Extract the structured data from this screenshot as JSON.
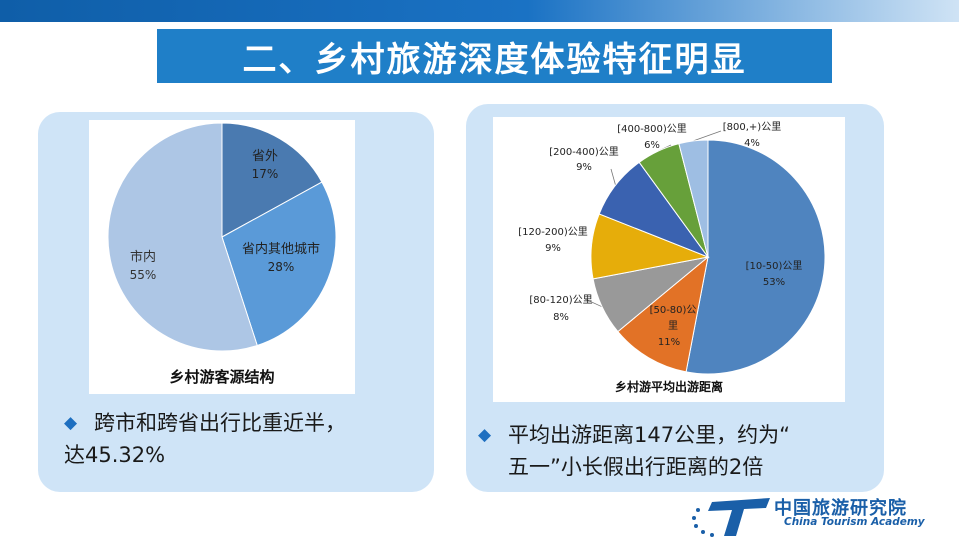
{
  "title": "二、乡村旅游深度体验特征明显",
  "left_panel": {
    "bullet_line1": "跨市和跨省出行比重近半，",
    "bullet_line2": "达45.32%"
  },
  "right_panel": {
    "bullet_line1": "平均出游距离147公里，约为“",
    "bullet_line2": "五一”小长假出行距离的2倍"
  },
  "logo": {
    "cn": "中国旅游研究院",
    "en": "China Tourism Academy"
  },
  "chart_data": [
    {
      "type": "pie",
      "title": "乡村游客源结构",
      "slices": [
        {
          "label": "省外",
          "value": 17,
          "pct": "17%",
          "color": "#4a7ab0"
        },
        {
          "label": "省内其他城市",
          "value": 28,
          "pct": "28%",
          "color": "#5a9ad8"
        },
        {
          "label": "市内",
          "value": 55,
          "pct": "55%",
          "color": "#adc6e5"
        }
      ]
    },
    {
      "type": "pie",
      "title": "乡村游平均出游距离",
      "slices": [
        {
          "label": "[10-50)公里",
          "value": 53,
          "pct": "53%",
          "color": "#4f84bf"
        },
        {
          "label": "[50-80)公里",
          "value": 11,
          "pct": "11%",
          "color": "#e27226"
        },
        {
          "label": "[80-120)公里",
          "value": 8,
          "pct": "8%",
          "color": "#999999"
        },
        {
          "label": "[120-200)公里",
          "value": 9,
          "pct": "9%",
          "color": "#e6ad0a"
        },
        {
          "label": "[200-400)公里",
          "value": 9,
          "pct": "9%",
          "color": "#3a62b0"
        },
        {
          "label": "[400-800)公里",
          "value": 6,
          "pct": "6%",
          "color": "#67a03a"
        },
        {
          "label": "[800,+)公里",
          "value": 4,
          "pct": "4%",
          "color": "#9ebee3"
        }
      ]
    }
  ]
}
